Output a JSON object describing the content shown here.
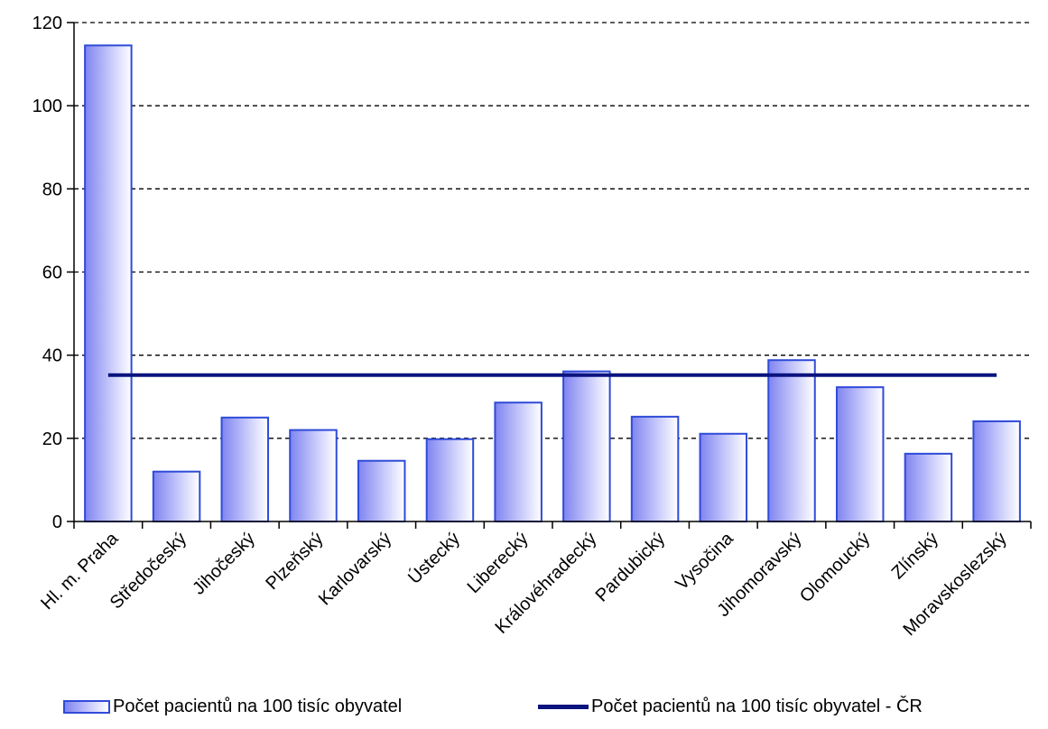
{
  "chart_data": {
    "type": "bar",
    "categories": [
      "Hl. m. Praha",
      "Středočeský",
      "Jihočeský",
      "Plzeňský",
      "Karlovarský",
      "Ústecký",
      "Liberecký",
      "Královéhradecký",
      "Pardubický",
      "Vysočina",
      "Jihomoravský",
      "Olomoucký",
      "Zlínský",
      "Moravskoslezský"
    ],
    "series": [
      {
        "name": "Počet pacientů na 100 tisíc obyvatel",
        "type": "bar",
        "values": [
          114.5,
          12,
          25,
          22,
          14.6,
          19.8,
          28.6,
          36.1,
          25.2,
          21.1,
          38.8,
          32.3,
          16.3,
          24.1
        ]
      },
      {
        "name": "Počet pacientů na 100 tisíc obyvatel - ČR",
        "type": "line",
        "values": [
          35.2,
          35.2,
          35.2,
          35.2,
          35.2,
          35.2,
          35.2,
          35.2,
          35.2,
          35.2,
          35.2,
          35.2,
          35.2,
          35.2
        ]
      }
    ],
    "y_ticks": [
      "0",
      "20",
      "40",
      "60",
      "80",
      "100",
      "120"
    ],
    "ylim": [
      0,
      120
    ],
    "grid": "horizontal dashed",
    "legend_position": "bottom",
    "colors": {
      "bar_border": "#2f4bd8",
      "bar_fill_dark": "#7f84f0",
      "bar_fill_light": "#ffffff",
      "line": "#0a137e",
      "grid": "#000000"
    }
  }
}
